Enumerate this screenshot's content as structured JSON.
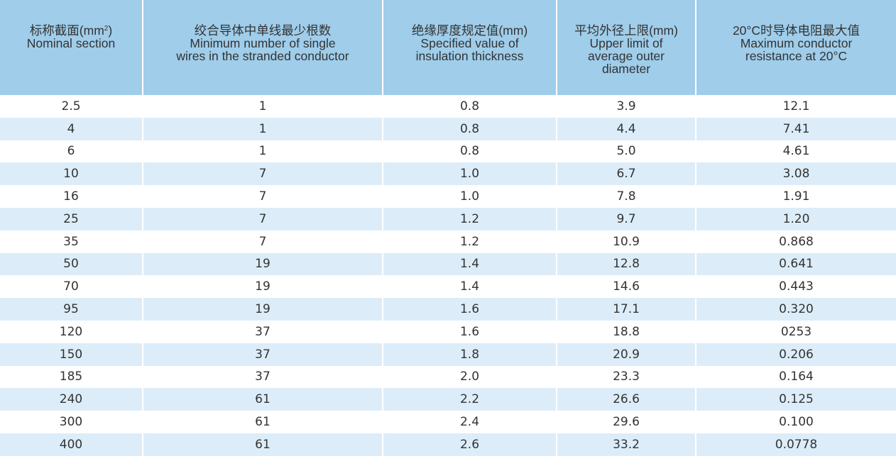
{
  "headers": [
    {
      "zh": "标称截面(mm",
      "sup": "2",
      "zh_tail": ")",
      "en": [
        "Nominal section"
      ]
    },
    {
      "zh": "绞合导体中单线最少根数",
      "sup": "",
      "zh_tail": "",
      "en": [
        "Minimum number of single",
        "wires in the stranded conductor"
      ]
    },
    {
      "zh": "绝缘厚度规定值(mm)",
      "sup": "",
      "zh_tail": "",
      "en": [
        "Specified value of",
        "insulation thickness"
      ]
    },
    {
      "zh": "平均外径上限(mm)",
      "sup": "",
      "zh_tail": "",
      "en": [
        "Upper limit of",
        "average outer",
        "diameter"
      ]
    },
    {
      "zh": "20°C时导体电阻最大值",
      "sup": "",
      "zh_tail": "",
      "en": [
        "Maximum conductor",
        "resistance at 20°C"
      ]
    }
  ],
  "rows": [
    [
      "2.5",
      "1",
      "0.8",
      "3.9",
      "12.1"
    ],
    [
      "4",
      "1",
      "0.8",
      "4.4",
      "7.41"
    ],
    [
      "6",
      "1",
      "0.8",
      "5.0",
      "4.61"
    ],
    [
      "10",
      "7",
      "1.0",
      "6.7",
      "3.08"
    ],
    [
      "16",
      "7",
      "1.0",
      "7.8",
      "1.91"
    ],
    [
      "25",
      "7",
      "1.2",
      "9.7",
      "1.20"
    ],
    [
      "35",
      "7",
      "1.2",
      "10.9",
      "0.868"
    ],
    [
      "50",
      "19",
      "1.4",
      "12.8",
      "0.641"
    ],
    [
      "70",
      "19",
      "1.4",
      "14.6",
      "0.443"
    ],
    [
      "95",
      "19",
      "1.6",
      "17.1",
      "0.320"
    ],
    [
      "120",
      "37",
      "1.6",
      "18.8",
      "0253"
    ],
    [
      "150",
      "37",
      "1.8",
      "20.9",
      "0.206"
    ],
    [
      "185",
      "37",
      "2.0",
      "23.3",
      "0.164"
    ],
    [
      "240",
      "61",
      "2.2",
      "26.6",
      "0.125"
    ],
    [
      "300",
      "61",
      "2.4",
      "29.6",
      "0.100"
    ],
    [
      "400",
      "61",
      "2.6",
      "33.2",
      "0.0778"
    ]
  ],
  "colors": {
    "header_bg": "#9fcdea",
    "row_alt_bg": "#dcedf9",
    "row_bg": "#ffffff",
    "text": "#333333"
  }
}
